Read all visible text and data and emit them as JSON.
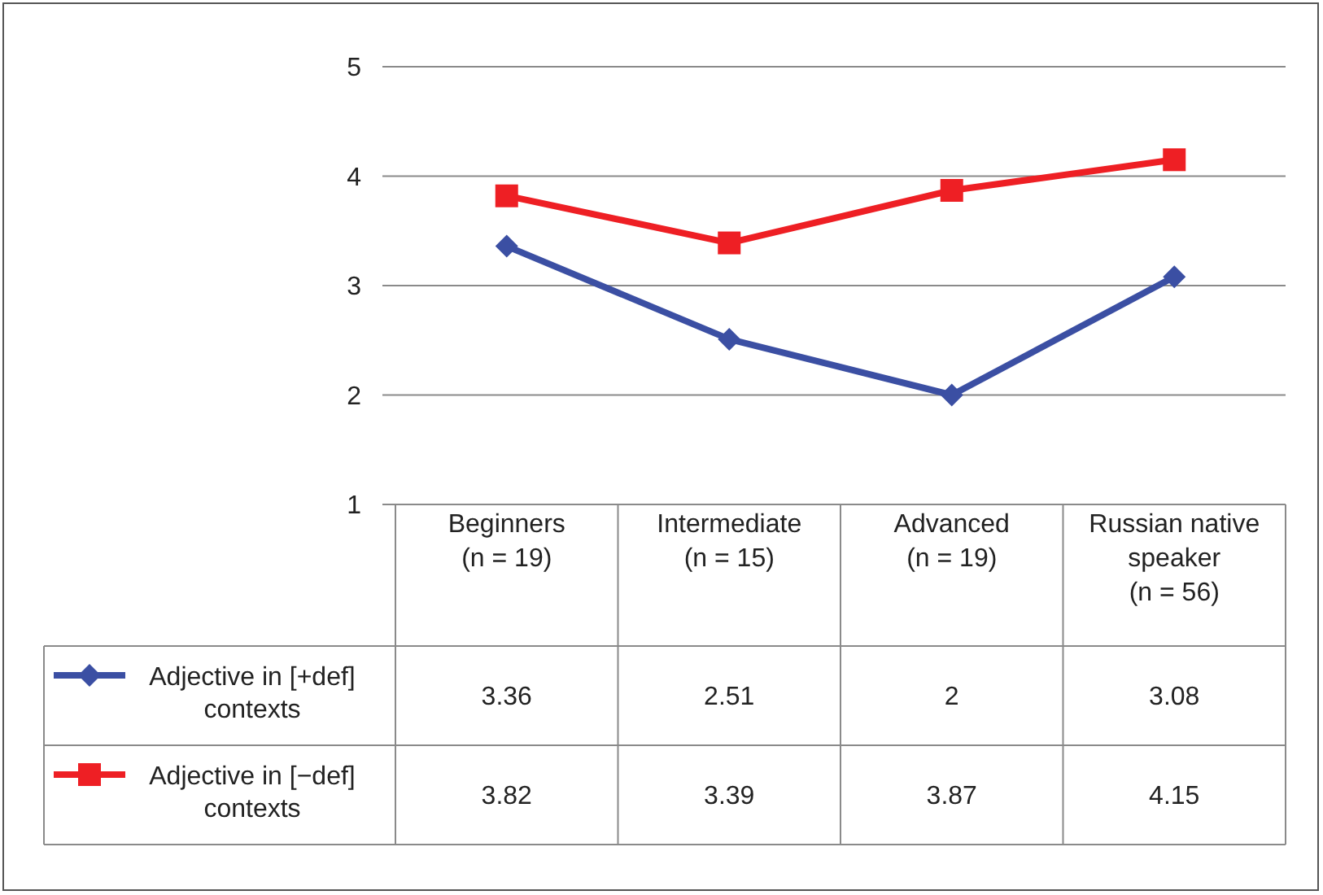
{
  "chart_data": {
    "type": "line",
    "categories": [
      "Beginners (n = 19)",
      "Intermediate (n = 15)",
      "Advanced (n = 19)",
      "Russian native speaker (n = 56)"
    ],
    "series": [
      {
        "name": "Adjective in [+def] contexts",
        "color": "#3b4fa3",
        "marker": "diamond",
        "values": [
          3.36,
          2.51,
          2,
          3.08
        ]
      },
      {
        "name": "Adjective in [−def] contexts",
        "color": "#ee1f24",
        "marker": "square",
        "values": [
          3.82,
          3.39,
          3.87,
          4.15
        ]
      }
    ],
    "ylim": [
      1,
      5
    ],
    "yticks": [
      1,
      2,
      3,
      4,
      5
    ],
    "grid": "y",
    "data_labels": true,
    "legend": "bottom left",
    "line_style": "solid"
  }
}
